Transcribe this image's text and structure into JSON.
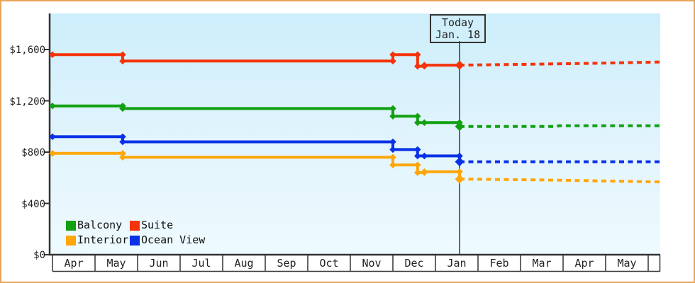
{
  "chart_data": {
    "type": "line",
    "title": "",
    "t_unit": "months since Apr 1 (0 = Apr 1, fractional = day of month)",
    "y_axis": {
      "ticks": [
        {
          "label": "$0",
          "value": 0
        },
        {
          "label": "$400",
          "value": 400
        },
        {
          "label": "$800",
          "value": 800
        },
        {
          "label": "$1,200",
          "value": 1200
        },
        {
          "label": "$1,600",
          "value": 1600
        }
      ],
      "range": [
        0,
        1780
      ],
      "grid": false
    },
    "x_axis": {
      "months": [
        "Apr",
        "May",
        "Jun",
        "Jul",
        "Aug",
        "Sep",
        "Oct",
        "Nov",
        "Dec",
        "Jan",
        "Feb",
        "Mar",
        "Apr",
        "May"
      ]
    },
    "today": {
      "t": 9.5667,
      "label_lines": [
        "Today",
        "Jan. 18"
      ]
    },
    "series": [
      {
        "name": "Balcony",
        "color": "#12a012",
        "history": [
          [
            0,
            1160
          ],
          [
            1.65,
            1160
          ],
          [
            1.65,
            1140
          ],
          [
            8,
            1140
          ],
          [
            8,
            1080
          ],
          [
            8.58,
            1080
          ],
          [
            8.58,
            1030
          ],
          [
            8.74,
            1030
          ],
          [
            9.5667,
            1030
          ],
          [
            9.5667,
            1000
          ]
        ],
        "forecast": [
          [
            9.5667,
            1000
          ],
          [
            11.85,
            1000
          ],
          [
            11.9,
            1005
          ],
          [
            14.2833,
            1005
          ]
        ]
      },
      {
        "name": "Suite",
        "color": "#f5330a",
        "history": [
          [
            0,
            1560
          ],
          [
            1.65,
            1560
          ],
          [
            1.65,
            1510
          ],
          [
            8,
            1510
          ],
          [
            8,
            1560
          ],
          [
            8.58,
            1560
          ],
          [
            8.58,
            1470
          ],
          [
            8.74,
            1470
          ],
          [
            8.74,
            1478
          ],
          [
            9.5667,
            1478
          ]
        ],
        "forecast": [
          [
            9.5667,
            1478
          ],
          [
            11.2,
            1485
          ],
          [
            12.8,
            1493
          ],
          [
            14.2833,
            1503
          ]
        ]
      },
      {
        "name": "Interior",
        "color": "#ffa608",
        "history": [
          [
            0,
            790
          ],
          [
            1.65,
            790
          ],
          [
            1.65,
            760
          ],
          [
            8,
            760
          ],
          [
            8,
            700
          ],
          [
            8.58,
            700
          ],
          [
            8.58,
            640
          ],
          [
            8.74,
            640
          ],
          [
            8.74,
            647
          ],
          [
            9.5667,
            647
          ],
          [
            9.5667,
            590
          ]
        ],
        "forecast": [
          [
            9.5667,
            590
          ],
          [
            11.5,
            583
          ],
          [
            13,
            575
          ],
          [
            14.2833,
            567
          ]
        ]
      },
      {
        "name": "Ocean View",
        "color": "#0a31e6",
        "history": [
          [
            0,
            920
          ],
          [
            1.65,
            920
          ],
          [
            1.65,
            880
          ],
          [
            8,
            880
          ],
          [
            8,
            820
          ],
          [
            8.58,
            820
          ],
          [
            8.58,
            770
          ],
          [
            8.74,
            770
          ],
          [
            9.5667,
            770
          ],
          [
            9.5667,
            725
          ]
        ],
        "forecast": [
          [
            9.5667,
            725
          ],
          [
            14.2833,
            725
          ]
        ]
      }
    ],
    "legend": {
      "labels": [
        "Balcony",
        "Suite",
        "Interior",
        "Ocean View"
      ],
      "position": "bottom-left"
    }
  },
  "frame": {
    "border_color": "#e8a45c",
    "background": "#ffffff"
  },
  "plot": {
    "bg_top": "#cdeefb",
    "bg_bottom": "#eefaff",
    "axis_color": "#333333",
    "today_line_color": "#444444"
  }
}
